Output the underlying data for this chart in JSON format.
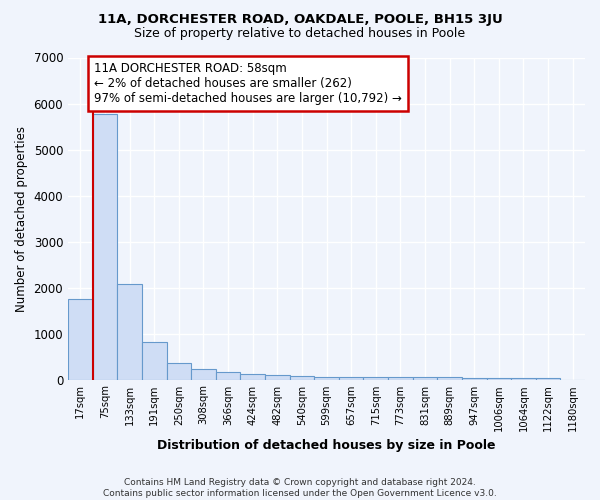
{
  "title1": "11A, DORCHESTER ROAD, OAKDALE, POOLE, BH15 3JU",
  "title2": "Size of property relative to detached houses in Poole",
  "xlabel": "Distribution of detached houses by size in Poole",
  "ylabel": "Number of detached properties",
  "bin_labels": [
    "17sqm",
    "75sqm",
    "133sqm",
    "191sqm",
    "250sqm",
    "308sqm",
    "366sqm",
    "424sqm",
    "482sqm",
    "540sqm",
    "599sqm",
    "657sqm",
    "715sqm",
    "773sqm",
    "831sqm",
    "889sqm",
    "947sqm",
    "1006sqm",
    "1064sqm",
    "1122sqm",
    "1180sqm"
  ],
  "bar_heights": [
    1750,
    5775,
    2070,
    810,
    370,
    230,
    155,
    110,
    100,
    75,
    60,
    60,
    60,
    50,
    50,
    50,
    40,
    40,
    30,
    30,
    0
  ],
  "bar_color": "#cfddf5",
  "bar_edge_color": "#6699cc",
  "vline_color": "#cc0000",
  "annotation_text": "11A DORCHESTER ROAD: 58sqm\n← 2% of detached houses are smaller (262)\n97% of semi-detached houses are larger (10,792) →",
  "annotation_box_color": "#ffffff",
  "annotation_border_color": "#cc0000",
  "ylim": [
    0,
    7000
  ],
  "yticks": [
    0,
    1000,
    2000,
    3000,
    4000,
    5000,
    6000,
    7000
  ],
  "background_color": "#f0f4fc",
  "grid_color": "#ffffff",
  "footer": "Contains HM Land Registry data © Crown copyright and database right 2024.\nContains public sector information licensed under the Open Government Licence v3.0."
}
